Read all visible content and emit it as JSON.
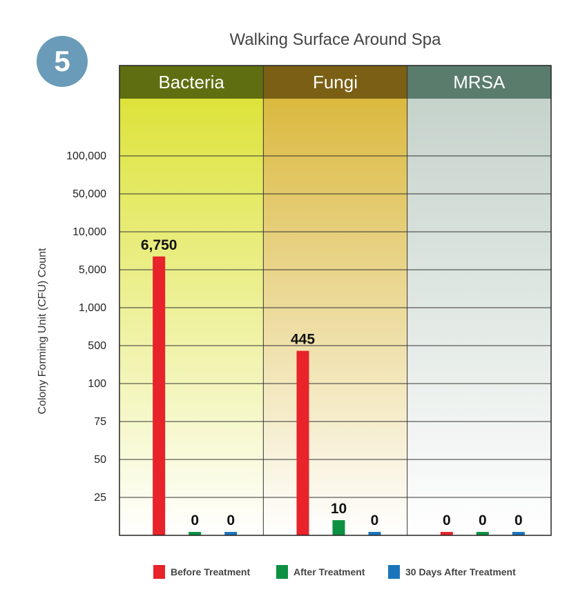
{
  "badge": "5",
  "chart_data": {
    "type": "bar",
    "title": "Walking Surface Around Spa",
    "ylabel": "Colony Forming Unit (CFU) Count",
    "xlabel": "",
    "categories": [
      "Bacteria",
      "Fungi",
      "MRSA"
    ],
    "series": [
      {
        "name": "Before Treatment",
        "color": "#e8232a",
        "values": [
          6750,
          445,
          0
        ],
        "labels": [
          "6,750",
          "445",
          "0"
        ]
      },
      {
        "name": "After Treatment",
        "color": "#0c9142",
        "values": [
          0,
          10,
          0
        ],
        "labels": [
          "0",
          "10",
          "0"
        ]
      },
      {
        "name": "30 Days After Treatment",
        "color": "#1a75bb",
        "values": [
          0,
          0,
          0
        ],
        "labels": [
          "0",
          "0",
          "0"
        ]
      }
    ],
    "y_ticks": [
      "25",
      "50",
      "75",
      "100",
      "500",
      "1,000",
      "5,000",
      "10,000",
      "50,000",
      "100,000"
    ],
    "y_tick_values": [
      25,
      50,
      75,
      100,
      500,
      1000,
      5000,
      10000,
      50000,
      100000
    ],
    "y_scale": "non-uniform (categorical tick spacing)",
    "grid": true,
    "legend_position": "bottom",
    "panel_colors": {
      "Bacteria": {
        "header": "#5f6e10",
        "fill": "#dde33a"
      },
      "Fungi": {
        "header": "#7a5f14",
        "fill": "#dbb93f"
      },
      "MRSA": {
        "header": "#5a7c6c",
        "fill": "#c5d3cb"
      }
    }
  }
}
